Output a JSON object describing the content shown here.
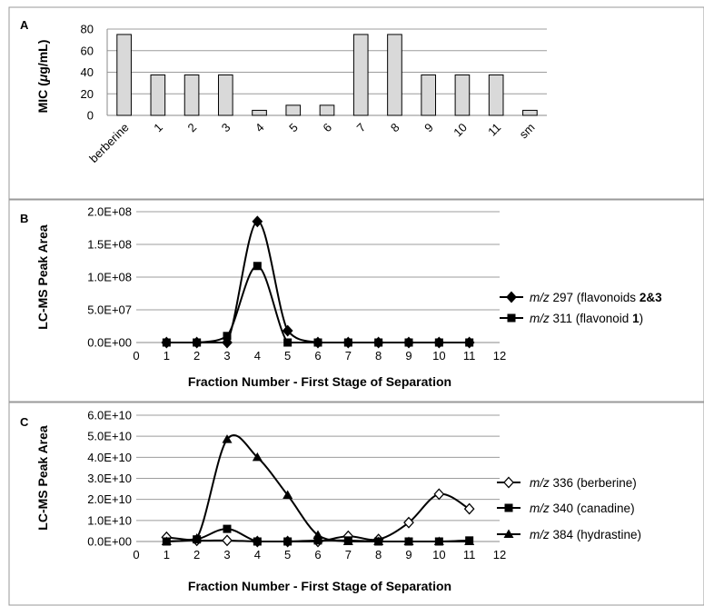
{
  "chart_data": [
    {
      "panel": "A",
      "type": "bar",
      "categories": [
        "berberine",
        "1",
        "2",
        "3",
        "4",
        "5",
        "6",
        "7",
        "8",
        "9",
        "10",
        "11",
        "sm"
      ],
      "values": [
        75,
        37.5,
        37.5,
        37.5,
        4.7,
        9.4,
        9.4,
        75,
        75,
        37.5,
        37.5,
        37.5,
        4.7
      ],
      "ylabel_prefix": "MIC (",
      "ylabel_unit_mu": "μ",
      "ylabel_suffix": "g/mL)",
      "yticks": [
        "0",
        "20",
        "40",
        "60",
        "80"
      ],
      "ylim": [
        0,
        80
      ],
      "bar_color": "#d9d9d9",
      "grid": true
    },
    {
      "panel": "B",
      "type": "line",
      "x": [
        1,
        2,
        3,
        4,
        5,
        6,
        7,
        8,
        9,
        10,
        11
      ],
      "xlim": [
        0,
        12
      ],
      "xticks": [
        "0",
        "1",
        "2",
        "3",
        "4",
        "5",
        "6",
        "7",
        "8",
        "9",
        "10",
        "11",
        "12"
      ],
      "xlabel": "Fraction Number - First Stage of Separation",
      "ylabel": "LC-MS Peak Area",
      "ylim": [
        0,
        200000000
      ],
      "yticks": [
        "0.0E+00",
        "5.0E+07",
        "1.0E+08",
        "1.5E+08",
        "2.0E+08"
      ],
      "grid": true,
      "legend_position": "right",
      "series": [
        {
          "marker": "diamond-filled",
          "legend_mz": "m/z",
          "legend_rest": " 297 (flavonoids ",
          "legend_bold": "2&3",
          "legend_end": "",
          "values": [
            0,
            0,
            0,
            185000000,
            18000000,
            0,
            0,
            0,
            0,
            0,
            0
          ]
        },
        {
          "marker": "square-filled",
          "legend_mz": "m/z",
          "legend_rest": " 311 (flavonoid ",
          "legend_bold": "1",
          "legend_end": ")",
          "values": [
            0,
            0,
            10000000,
            117000000,
            0,
            0,
            0,
            0,
            0,
            0,
            0
          ]
        }
      ]
    },
    {
      "panel": "C",
      "type": "line",
      "x": [
        1,
        2,
        3,
        4,
        5,
        6,
        7,
        8,
        9,
        10,
        11
      ],
      "xlim": [
        0,
        12
      ],
      "xticks": [
        "0",
        "1",
        "2",
        "3",
        "4",
        "5",
        "6",
        "7",
        "8",
        "9",
        "10",
        "11",
        "12"
      ],
      "xlabel": "Fraction Number - First Stage of Separation",
      "ylabel": "LC-MS Peak Area",
      "ylim": [
        0,
        60000000000
      ],
      "yticks": [
        "0.0E+00",
        "1.0E+10",
        "2.0E+10",
        "3.0E+10",
        "4.0E+10",
        "5.0E+10",
        "6.0E+10"
      ],
      "grid": true,
      "legend_position": "right",
      "series": [
        {
          "marker": "diamond-open",
          "legend_mz": "m/z",
          "legend_rest": " 336 (berberine)",
          "values": [
            2000000000,
            500000000,
            500000000,
            0,
            0,
            0,
            2500000000,
            1000000000,
            9000000000,
            22500000000,
            15500000000
          ]
        },
        {
          "marker": "square-filled",
          "legend_mz": "m/z",
          "legend_rest": " 340 (canadine)",
          "values": [
            0,
            1000000000,
            6000000000,
            0,
            0,
            500000000,
            500000000,
            0,
            0,
            0,
            500000000
          ]
        },
        {
          "marker": "triangle-filled",
          "legend_mz": "m/z",
          "legend_rest": " 384 (hydrastine)",
          "values": [
            0,
            1500000000,
            48500000000,
            40000000000,
            22000000000,
            3000000000,
            0,
            0,
            0,
            0,
            0
          ]
        }
      ]
    }
  ]
}
